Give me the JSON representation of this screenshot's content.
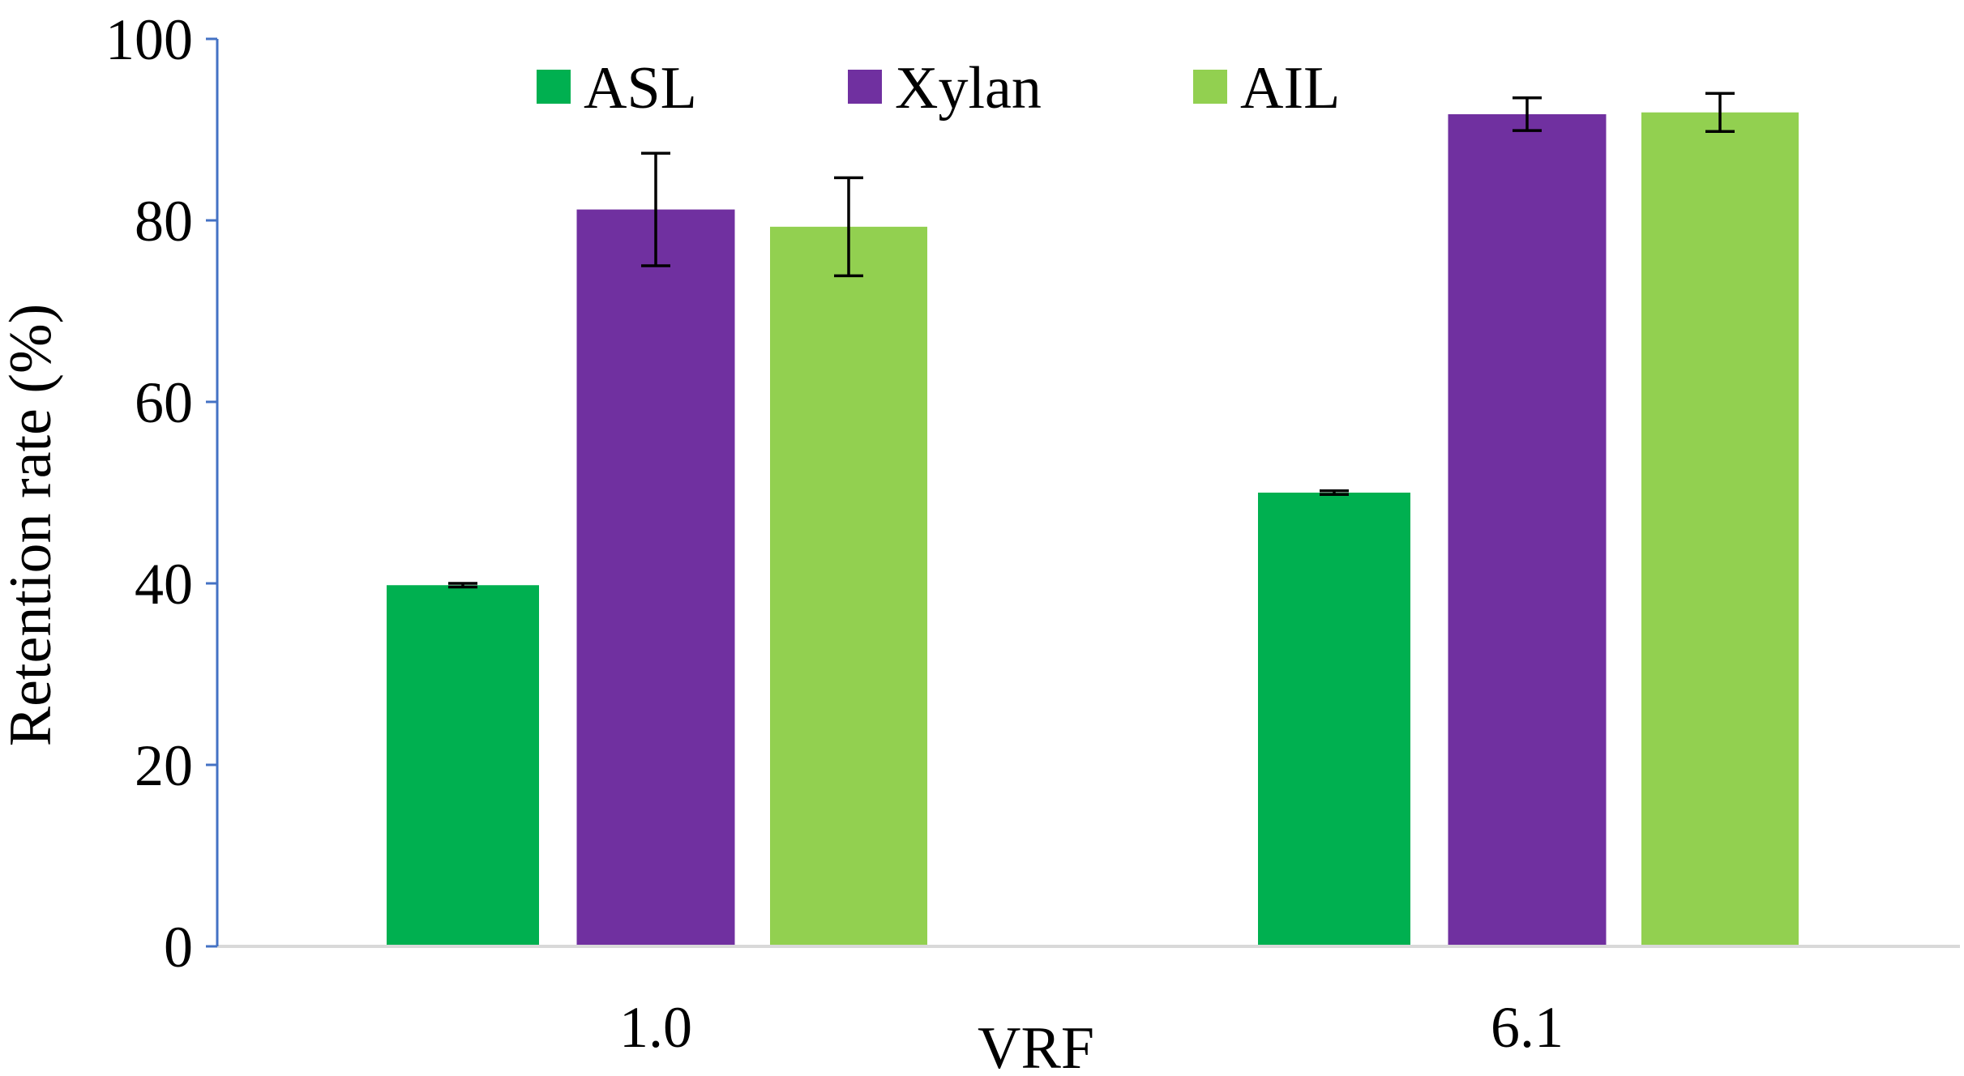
{
  "chart_data": {
    "type": "bar",
    "title": "",
    "xlabel": "VRF",
    "ylabel": "Retention rate (%)",
    "ylim": [
      0,
      100
    ],
    "yticks": [
      "0",
      "20",
      "40",
      "60",
      "80",
      "100"
    ],
    "categories": [
      "1.0",
      "6.1"
    ],
    "legend_position": "top",
    "grid": false,
    "series": [
      {
        "name": "ASL",
        "color": "#00B050",
        "values": [
          39.8,
          50.0
        ],
        "errors": [
          0.2,
          0.2
        ]
      },
      {
        "name": "Xylan",
        "color": "#7030A0",
        "values": [
          81.2,
          91.7
        ],
        "errors": [
          6.2,
          1.8
        ]
      },
      {
        "name": "AIL",
        "color": "#92D050",
        "values": [
          79.3,
          91.9
        ],
        "errors": [
          5.4,
          2.1
        ]
      }
    ]
  },
  "colors": {
    "axis": "#4472C4",
    "baseline": "#D9D9D9",
    "error_bar": "#000000"
  }
}
